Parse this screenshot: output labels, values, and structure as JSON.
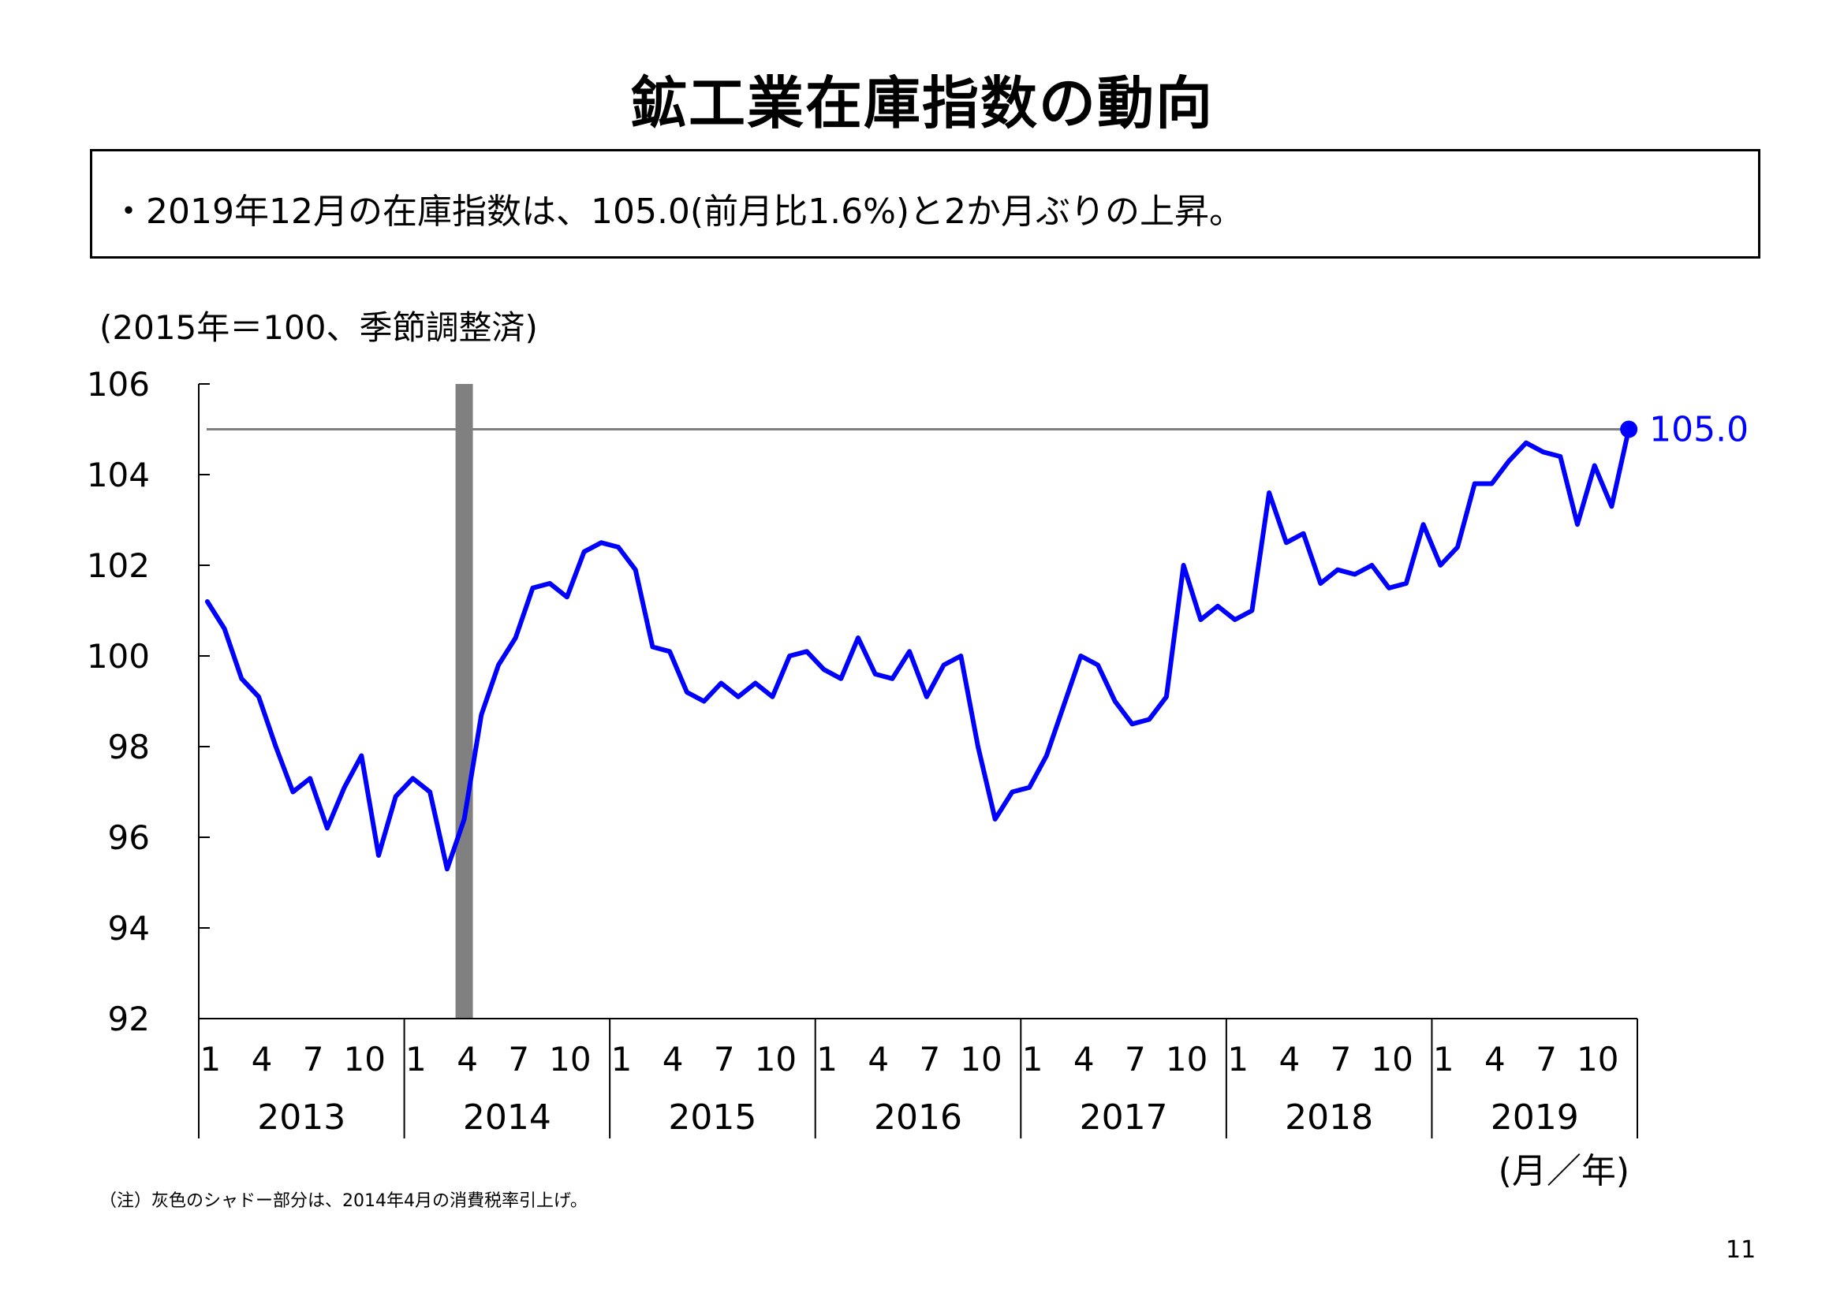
{
  "title": "鉱工業在庫指数の動向",
  "summary": "・2019年12月の在庫指数は、105.0(前月比1.6%)と2か月ぶりの上昇。",
  "unit_note": "(2015年＝100、季節調整済)",
  "footnote": "（注）灰色のシャドー部分は、2014年4月の消費税率引上げ。",
  "page_number": "11",
  "colors": {
    "series": "#0000ff",
    "shade": "#808080",
    "reference": "#808080",
    "axis": "#000000"
  },
  "chart_data": {
    "type": "line",
    "xlabel": "(月／年)",
    "ylim": [
      92,
      106
    ],
    "y_ticks": [
      92,
      94,
      96,
      98,
      100,
      102,
      104,
      106
    ],
    "month_ticks": [
      "1",
      "4",
      "7",
      "10"
    ],
    "years": [
      "2013",
      "2014",
      "2015",
      "2016",
      "2017",
      "2018",
      "2019"
    ],
    "shade": {
      "year": "2014",
      "month": 4
    },
    "reference_line": 105.0,
    "last_label": "105.0",
    "series": [
      {
        "values": [
          101.2,
          100.6,
          99.5,
          99.1,
          98.0,
          97.0,
          97.3,
          96.2,
          97.1,
          97.8,
          95.6,
          96.9,
          97.3,
          97.0,
          95.3,
          96.4,
          98.7,
          99.8,
          100.4,
          101.5,
          101.6,
          101.3,
          102.3,
          102.5,
          102.4,
          101.9,
          100.2,
          100.1,
          99.2,
          99.0,
          99.4,
          99.1,
          99.4,
          99.1,
          100.0,
          100.1,
          99.7,
          99.5,
          100.4,
          99.6,
          99.5,
          100.1,
          99.1,
          99.8,
          100.0,
          98.0,
          96.4,
          97.0,
          97.1,
          97.8,
          98.9,
          100.0,
          99.8,
          99.0,
          98.5,
          98.6,
          99.1,
          102.0,
          100.8,
          101.1,
          100.8,
          101.0,
          103.6,
          102.5,
          102.7,
          101.6,
          101.9,
          101.8,
          102.0,
          101.5,
          101.6,
          102.9,
          102.0,
          102.4,
          103.8,
          103.8,
          104.3,
          104.7,
          104.5,
          104.4,
          102.9,
          104.2,
          103.3,
          105.0
        ]
      }
    ]
  }
}
